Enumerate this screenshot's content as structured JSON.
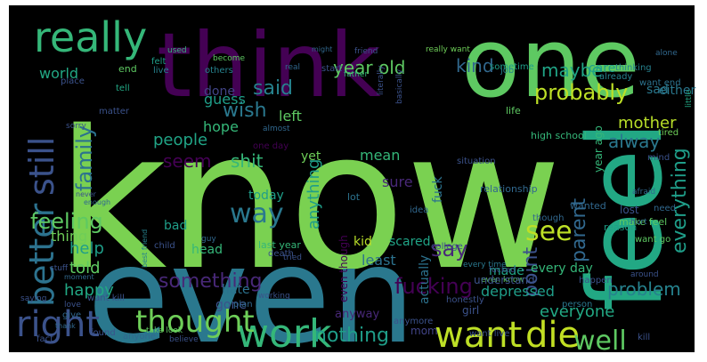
{
  "cloud": {
    "words": [
      {
        "text": "know",
        "color": "#7ad151"
      },
      {
        "text": "even",
        "color": "#2a788e"
      },
      {
        "text": "think",
        "color": "#440154"
      },
      {
        "text": "one",
        "color": "#5ec962"
      },
      {
        "text": "feel",
        "color": "#22a884"
      },
      {
        "text": "really",
        "color": "#35b779"
      },
      {
        "text": "better",
        "color": "#2c728e"
      },
      {
        "text": "still",
        "color": "#3b528b"
      },
      {
        "text": "right",
        "color": "#3b528b"
      },
      {
        "text": "work",
        "color": "#35b779"
      },
      {
        "text": "want",
        "color": "#bddf26"
      },
      {
        "text": "die",
        "color": "#c2df23"
      },
      {
        "text": "thought",
        "color": "#6ece58"
      },
      {
        "text": "well",
        "color": "#5ec962"
      },
      {
        "text": "see",
        "color": "#bddf26"
      },
      {
        "text": "way",
        "color": "#2a788e"
      },
      {
        "text": "family",
        "color": "#2c728e"
      },
      {
        "text": "parent",
        "color": "#31688e"
      },
      {
        "text": "say",
        "color": "#482878"
      },
      {
        "text": "probably",
        "color": "#bddf26"
      },
      {
        "text": "feeling",
        "color": "#5ec962"
      },
      {
        "text": "everything",
        "color": "#1f9e89"
      },
      {
        "text": "fucking",
        "color": "#440154"
      },
      {
        "text": "point",
        "color": "#3b528b"
      },
      {
        "text": "nothing",
        "color": "#1f9e89"
      },
      {
        "text": "said",
        "color": "#26828e"
      },
      {
        "text": "year old",
        "color": "#5ec962"
      },
      {
        "text": "kind",
        "color": "#31688e"
      },
      {
        "text": "maybe",
        "color": "#20a486"
      },
      {
        "text": "wish",
        "color": "#2a788e"
      },
      {
        "text": "alway",
        "color": "#2a788e"
      },
      {
        "text": "problem",
        "color": "#26828e"
      },
      {
        "text": "something",
        "color": "#482878"
      },
      {
        "text": "anything",
        "color": "#1f9e89"
      },
      {
        "text": "people",
        "color": "#20a486"
      },
      {
        "text": "shit",
        "color": "#35b779"
      },
      {
        "text": "seem",
        "color": "#440154"
      },
      {
        "text": "help",
        "color": "#1f9e89"
      },
      {
        "text": "told",
        "color": "#5ec962"
      },
      {
        "text": "happy",
        "color": "#22a884"
      },
      {
        "text": "everyone",
        "color": "#22a884"
      },
      {
        "text": "mother",
        "color": "#b8de29"
      },
      {
        "text": "hope",
        "color": "#35b779"
      },
      {
        "text": "thing",
        "color": "#6ece58"
      },
      {
        "text": "world",
        "color": "#22a884"
      },
      {
        "text": "guess",
        "color": "#1f9e89"
      },
      {
        "text": "left",
        "color": "#5ec962"
      },
      {
        "text": "sure",
        "color": "#482878"
      },
      {
        "text": "mean",
        "color": "#35b779"
      },
      {
        "text": "made",
        "color": "#20a486"
      },
      {
        "text": "depressed",
        "color": "#1f9e89"
      },
      {
        "text": "fuck",
        "color": "#2c728e"
      },
      {
        "text": "done",
        "color": "#414487"
      },
      {
        "text": "care",
        "color": "#1f9e89"
      },
      {
        "text": "either",
        "color": "#2a788e"
      },
      {
        "text": "yet",
        "color": "#6ece58"
      },
      {
        "text": "today",
        "color": "#1f9e89"
      },
      {
        "text": "kid",
        "color": "#b8de29"
      },
      {
        "text": "bad",
        "color": "#1f9e89"
      },
      {
        "text": "head",
        "color": "#35b779"
      },
      {
        "text": "hate",
        "color": "#2c728e"
      },
      {
        "text": "gone",
        "color": "#3b528b"
      },
      {
        "text": "sometime",
        "color": "#1f9e89"
      },
      {
        "text": "thinking",
        "color": "#26828e"
      },
      {
        "text": "least",
        "color": "#2c728e"
      },
      {
        "text": "scared",
        "color": "#20a486"
      },
      {
        "text": "actually",
        "color": "#2c728e"
      },
      {
        "text": "even though",
        "color": "#440154"
      },
      {
        "text": "every day",
        "color": "#35b779"
      },
      {
        "text": "anyway",
        "color": "#482878"
      },
      {
        "text": "year ago",
        "color": "#35b779"
      },
      {
        "text": "high school",
        "color": "#35b779"
      },
      {
        "text": "want end",
        "color": "#2c728e"
      },
      {
        "text": "want kill",
        "color": "#3b528b"
      },
      {
        "text": "make feel",
        "color": "#5ec962"
      },
      {
        "text": "want go",
        "color": "#5ec962"
      },
      {
        "text": "last year",
        "color": "#35b779"
      },
      {
        "text": "really want",
        "color": "#6ece58"
      },
      {
        "text": "one day",
        "color": "#440154"
      },
      {
        "text": "take look",
        "color": "#5ec962"
      },
      {
        "text": "every time",
        "color": "#2a788e"
      },
      {
        "text": "even know",
        "color": "#5ec962"
      },
      {
        "text": "best friend",
        "color": "#26828e"
      },
      {
        "text": "sad",
        "color": "#2a788e"
      },
      {
        "text": "tired",
        "color": "#6ece58"
      },
      {
        "text": "life",
        "color": "#5ec962"
      },
      {
        "text": "friend",
        "color": "#3b528b"
      },
      {
        "text": "father",
        "color": "#35b779"
      },
      {
        "text": "used",
        "color": "#35b779"
      },
      {
        "text": "live",
        "color": "#26828e"
      },
      {
        "text": "felt",
        "color": "#1f9e89"
      },
      {
        "text": "end",
        "color": "#5ec962"
      },
      {
        "text": "place",
        "color": "#3b528b"
      },
      {
        "text": "tell",
        "color": "#22a884"
      },
      {
        "text": "matter",
        "color": "#3b528b"
      },
      {
        "text": "others",
        "color": "#26828e"
      },
      {
        "text": "become",
        "color": "#5ec962"
      },
      {
        "text": "job",
        "color": "#26828e"
      },
      {
        "text": "little",
        "color": "#22a884"
      },
      {
        "text": "already",
        "color": "#26828e"
      },
      {
        "text": "alone",
        "color": "#31688e"
      },
      {
        "text": "lot",
        "color": "#2c728e"
      },
      {
        "text": "lost",
        "color": "#3b528b"
      },
      {
        "text": "idea",
        "color": "#31688e"
      },
      {
        "text": "wanted",
        "color": "#31688e"
      },
      {
        "text": "reason",
        "color": "#1f9e89"
      },
      {
        "text": "though",
        "color": "#31688e"
      },
      {
        "text": "understand",
        "color": "#3b528b"
      },
      {
        "text": "honestly",
        "color": "#3b528b"
      },
      {
        "text": "person",
        "color": "#2a788e"
      },
      {
        "text": "girl",
        "color": "#3b528b"
      },
      {
        "text": "mom",
        "color": "#414487"
      },
      {
        "text": "plan",
        "color": "#31688e"
      },
      {
        "text": "working",
        "color": "#3b528b"
      },
      {
        "text": "tried",
        "color": "#3b528b"
      },
      {
        "text": "death",
        "color": "#3b528b"
      },
      {
        "text": "child",
        "color": "#3b528b"
      },
      {
        "text": "guy",
        "color": "#31688e"
      },
      {
        "text": "stuff",
        "color": "#3b528b"
      },
      {
        "text": "moment",
        "color": "#31688e"
      },
      {
        "text": "never",
        "color": "#3b528b"
      },
      {
        "text": "enough",
        "color": "#31688e"
      },
      {
        "text": "love",
        "color": "#3b528b"
      },
      {
        "text": "found",
        "color": "#3b528b"
      },
      {
        "text": "anyone",
        "color": "#31688e"
      },
      {
        "text": "believe",
        "color": "#3b528b"
      },
      {
        "text": "fact",
        "color": "#3b528b"
      },
      {
        "text": "need",
        "color": "#31688e"
      },
      {
        "text": "happen",
        "color": "#3b528b"
      },
      {
        "text": "around",
        "color": "#3b528b"
      },
      {
        "text": "want live",
        "color": "#3b528b"
      },
      {
        "text": "basically",
        "color": "#3b528b"
      },
      {
        "text": "literally",
        "color": "#3b528b"
      },
      {
        "text": "relationship",
        "color": "#31688e"
      },
      {
        "text": "situation",
        "color": "#3b528b"
      },
      {
        "text": "afraid",
        "color": "#31688e"
      },
      {
        "text": "hurt",
        "color": "#31688e"
      },
      {
        "text": "mind",
        "color": "#3b528b"
      },
      {
        "text": "kill",
        "color": "#3b528b"
      },
      {
        "text": "fucked",
        "color": "#3b528b"
      },
      {
        "text": "college",
        "color": "#3b528b"
      },
      {
        "text": "sorry",
        "color": "#3b528b"
      },
      {
        "text": "saying",
        "color": "#3b528b"
      },
      {
        "text": "give",
        "color": "#31688e"
      },
      {
        "text": "thank",
        "color": "#31688e"
      },
      {
        "text": "might",
        "color": "#31688e"
      },
      {
        "text": "real",
        "color": "#31688e"
      },
      {
        "text": "almost",
        "color": "#31688e"
      },
      {
        "text": "start",
        "color": "#3b528b"
      },
      {
        "text": "anymore",
        "color": "#3b528b"
      }
    ]
  }
}
